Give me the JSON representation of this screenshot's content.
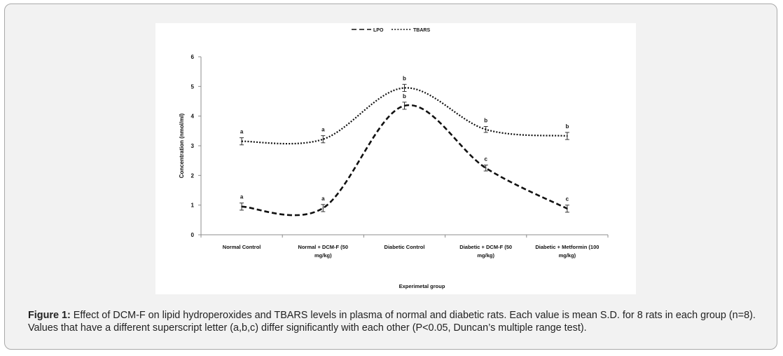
{
  "chart_data": {
    "type": "line",
    "title": "",
    "xlabel": "Experimetal group",
    "ylabel": "Concentration (nmol/ml)",
    "ylim": [
      0,
      6
    ],
    "yticks": [
      "0",
      "1",
      "2",
      "3",
      "4",
      "5",
      "6"
    ],
    "categories": [
      [
        "Normal Control"
      ],
      [
        "Normal + DCM-F (50",
        "mg/kg)"
      ],
      [
        "Diabetic Control"
      ],
      [
        "Diabetic + DCM-F (50",
        "mg/kg)"
      ],
      [
        "Diabetic + Metformin (100",
        "mg/kg)"
      ]
    ],
    "legend": {
      "position": "top",
      "items": [
        "LPO",
        "TBARS"
      ]
    },
    "series": [
      {
        "name": "LPO",
        "style": "dashed",
        "values": [
          0.95,
          0.9,
          4.35,
          2.25,
          0.88
        ],
        "errors": [
          0.12,
          0.12,
          0.12,
          0.1,
          0.12
        ],
        "letters": [
          "a",
          "a",
          "b",
          "c",
          "c"
        ]
      },
      {
        "name": "TBARS",
        "style": "dotted",
        "values": [
          3.15,
          3.22,
          4.95,
          3.55,
          3.33
        ],
        "errors": [
          0.12,
          0.12,
          0.12,
          0.1,
          0.12
        ],
        "letters": [
          "a",
          "a",
          "b",
          "b",
          "b"
        ]
      }
    ]
  },
  "caption": {
    "label": "Figure 1:",
    "text": " Effect of DCM-F on lipid hydroperoxides and TBARS levels in plasma of normal and diabetic rats. Each value is mean S.D. for 8 rats in each group (n=8). Values that have a different superscript letter (a,b,c) differ significantly with each other (P<0.05, Duncan’s multiple range test)."
  }
}
